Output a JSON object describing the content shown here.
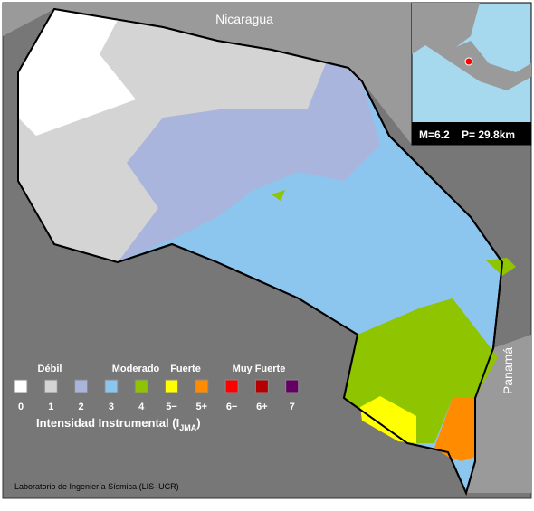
{
  "map": {
    "labels": {
      "north": "Nicaragua",
      "east": "Panamá"
    },
    "inset": {
      "magnitude": "M=6.2",
      "depth": "P= 29.8km"
    },
    "legend": {
      "groups": [
        "Débil",
        "Moderado",
        "Fuerte",
        "Muy Fuerte"
      ],
      "items": [
        {
          "label": "0",
          "color": "#ffffff"
        },
        {
          "label": "1",
          "color": "#d4d4d4"
        },
        {
          "label": "2",
          "color": "#a9b5dc"
        },
        {
          "label": "3",
          "color": "#8cc6ee"
        },
        {
          "label": "4",
          "color": "#8ec400"
        },
        {
          "label": "5−",
          "color": "#ffff00"
        },
        {
          "label": "5+",
          "color": "#ff8c00"
        },
        {
          "label": "6−",
          "color": "#ff0000"
        },
        {
          "label": "6+",
          "color": "#b40000"
        },
        {
          "label": "7",
          "color": "#640064"
        }
      ],
      "title": "Intensidad Instrumental (I",
      "title_sub": "JMA",
      "title_end": ")"
    },
    "credit": "Laboratorio de Ingeniería Sísmica (LIS–UCR)"
  }
}
